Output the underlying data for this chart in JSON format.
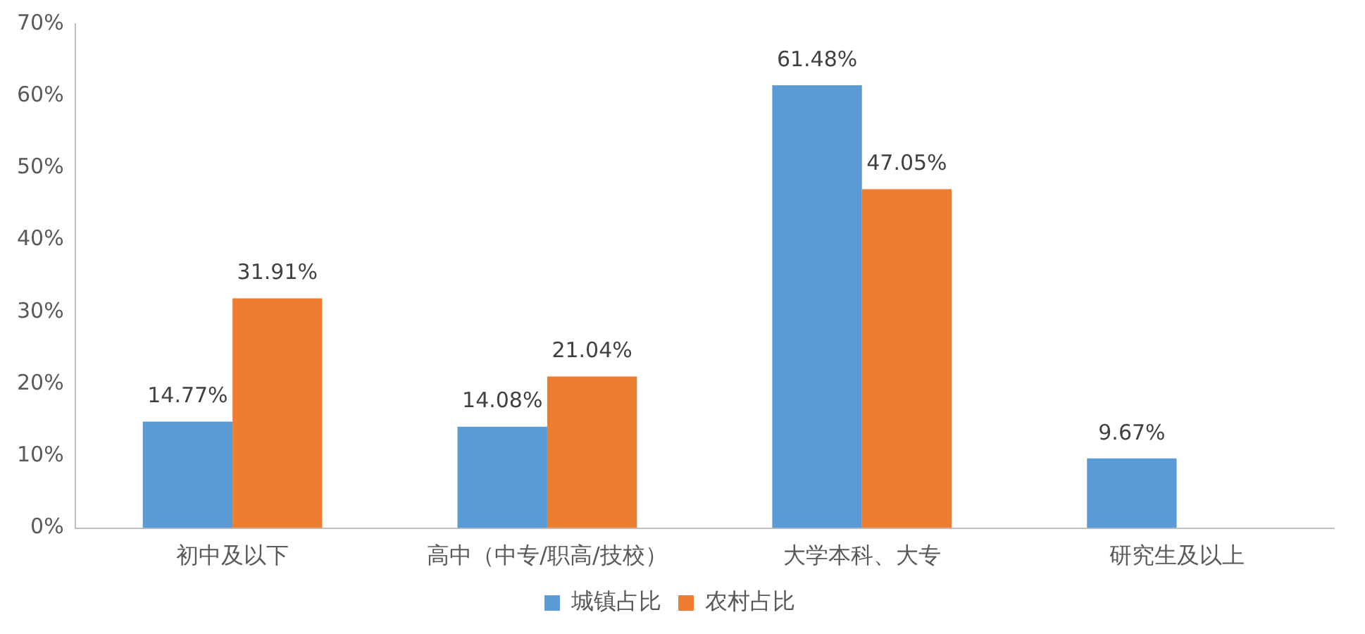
{
  "chart_data": {
    "type": "bar",
    "categories": [
      "初中及以下",
      "高中（中专/职高/技校）",
      "大学本科、大专",
      "研究生及以上"
    ],
    "series": [
      {
        "name": "城镇占比",
        "color": "#5b9bd5",
        "values": [
          14.77,
          14.08,
          61.48,
          9.67
        ],
        "value_labels": [
          "14.77%",
          "14.08%",
          "61.48%",
          "9.67%"
        ]
      },
      {
        "name": "农村占比",
        "color": "#ed7d31",
        "values": [
          31.91,
          21.04,
          47.05,
          null
        ],
        "value_labels": [
          "31.91%",
          "21.04%",
          "47.05%",
          null
        ]
      }
    ],
    "ylim": [
      0,
      70
    ],
    "yticks": [
      {
        "value": 0,
        "label": "0%"
      },
      {
        "value": 10,
        "label": "10%"
      },
      {
        "value": 20,
        "label": "20%"
      },
      {
        "value": 30,
        "label": "30%"
      },
      {
        "value": 40,
        "label": "40%"
      },
      {
        "value": 50,
        "label": "50%"
      },
      {
        "value": 60,
        "label": "60%"
      },
      {
        "value": 70,
        "label": "70%"
      }
    ],
    "grid": false,
    "legend": "bottom"
  }
}
